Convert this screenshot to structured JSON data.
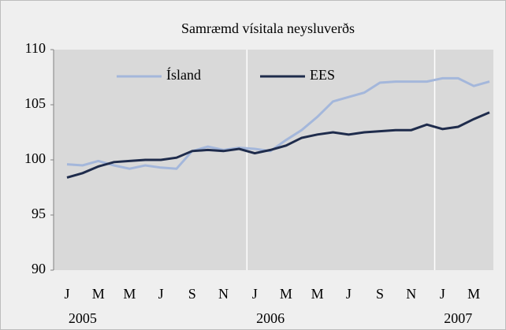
{
  "chart_data": {
    "type": "line",
    "title": "Samræmd vísitala neysluverðs",
    "categories": [
      "J",
      null,
      "M",
      null,
      "M",
      null,
      "J",
      null,
      "S",
      null,
      "N",
      null,
      "J",
      null,
      "M",
      null,
      "M",
      null,
      "J",
      null,
      "S",
      null,
      "N",
      null,
      "J",
      null,
      "M",
      null
    ],
    "years": [
      "2005",
      "2006",
      "2007"
    ],
    "series": [
      {
        "name": "Ísland",
        "color": "#a4b7db",
        "values": [
          99.6,
          99.5,
          99.9,
          99.5,
          99.2,
          99.5,
          99.3,
          99.2,
          100.8,
          101.2,
          100.9,
          101.1,
          101.0,
          100.8,
          101.8,
          102.7,
          103.9,
          105.3,
          105.7,
          106.1,
          107.0,
          107.1,
          107.1,
          107.1,
          107.4,
          107.4,
          106.7,
          107.1
        ]
      },
      {
        "name": "EES",
        "color": "#1f2c4c",
        "values": [
          98.4,
          98.8,
          99.4,
          99.8,
          99.9,
          100.0,
          100.0,
          100.2,
          100.8,
          100.9,
          100.8,
          101.0,
          100.6,
          100.9,
          101.3,
          102.0,
          102.3,
          102.5,
          102.3,
          102.5,
          102.6,
          102.7,
          102.7,
          103.2,
          102.8,
          103.0,
          103.7,
          104.3
        ]
      }
    ],
    "ylim": [
      90,
      110
    ],
    "yticks": [
      90,
      95,
      100,
      105,
      110
    ],
    "grid": false
  }
}
